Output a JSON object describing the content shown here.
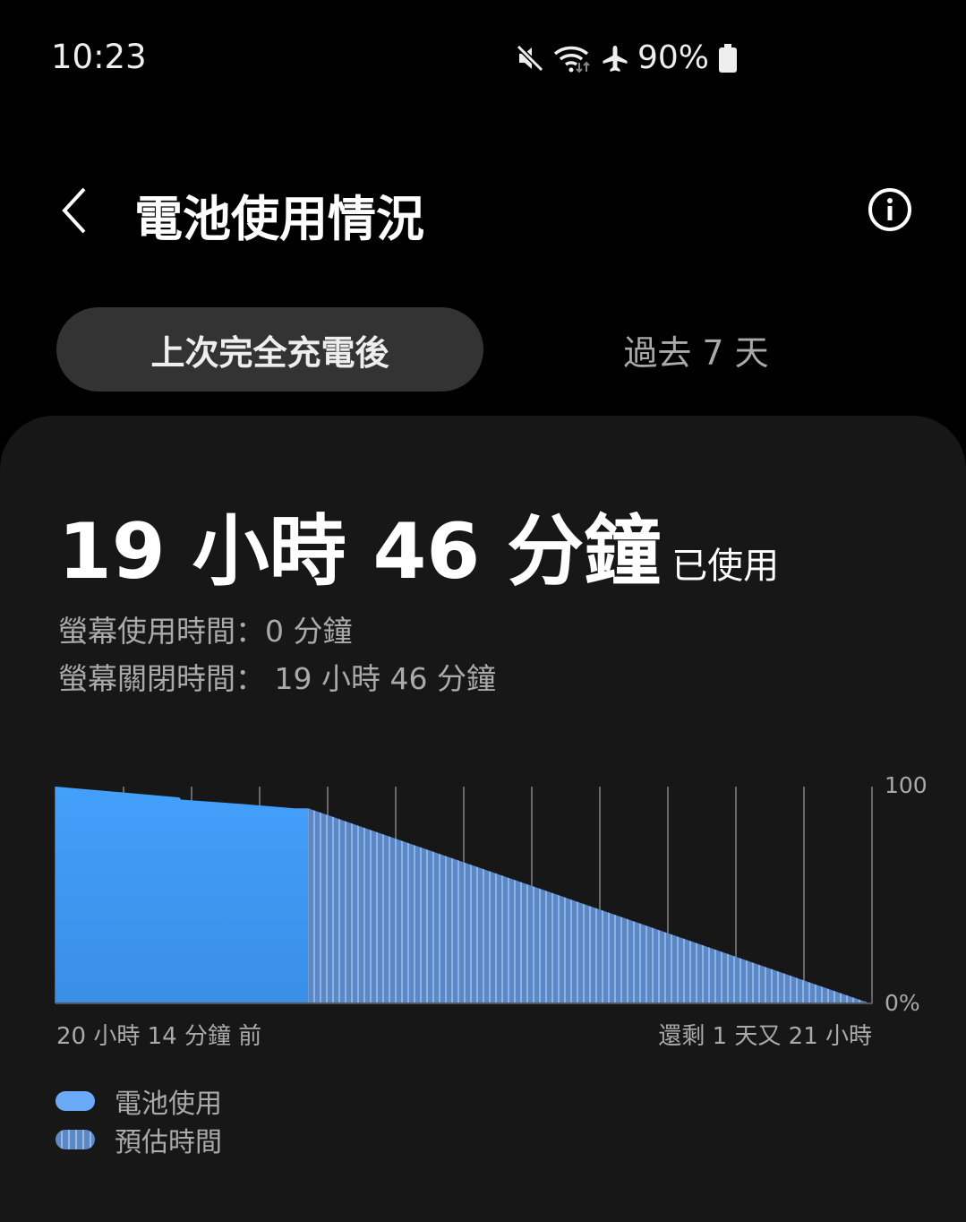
{
  "status_bar": {
    "time": "10:23",
    "battery_percent": "90%",
    "icons": [
      "mute-icon",
      "wifi-icon",
      "airplane-icon",
      "battery-icon"
    ]
  },
  "header": {
    "title": "電池使用情況",
    "back_icon": "chevron-left-icon",
    "info_icon": "info-icon"
  },
  "tabs": [
    {
      "label": "上次完全充電後",
      "selected": true
    },
    {
      "label": "過去 7 天",
      "selected": false
    }
  ],
  "summary": {
    "used_time": "19 小時 46 分鐘",
    "used_suffix": "已使用",
    "screen_on": "螢幕使用時間：0 分鐘",
    "screen_off": "螢幕關閉時間： 19 小時 46 分鐘"
  },
  "colors": {
    "usage": "#3f9cf5",
    "estimate": "#5b8ccc",
    "card": "#171717"
  },
  "chart_data": {
    "type": "area",
    "x_start_label": "20 小時 14 分鐘 前",
    "x_end_label": "還剩 1 天又 21 小時",
    "y_tick_labels": [
      "100",
      "0%"
    ],
    "ylim": [
      0,
      100
    ],
    "grid": "vertical",
    "history_hours_ago": 20.23,
    "remaining_hours": 45,
    "series": [
      {
        "name": "電池使用",
        "points": [
          {
            "hours_ago": 20.23,
            "percent": 100
          },
          {
            "hours_ago": 10.3,
            "percent": 95
          },
          {
            "hours_ago": 10.2,
            "percent": 94
          },
          {
            "hours_ago": 5.3,
            "percent": 92
          },
          {
            "hours_ago": 1.1,
            "percent": 90
          },
          {
            "hours_ago": 0,
            "percent": 90
          }
        ]
      },
      {
        "name": "預估時間",
        "points": [
          {
            "hours_from_now": 0,
            "percent": 90
          },
          {
            "hours_from_now": 45,
            "percent": 0
          }
        ]
      }
    ]
  },
  "legend": [
    {
      "label": "電池使用"
    },
    {
      "label": "預估時間"
    }
  ]
}
